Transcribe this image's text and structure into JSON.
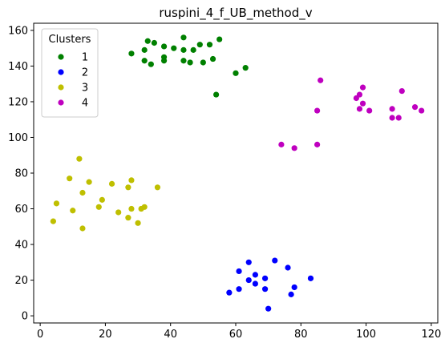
{
  "chart_data": {
    "type": "scatter",
    "title": "ruspini_4_f_UB_method_v",
    "xlabel": "",
    "ylabel": "",
    "xlim": [
      -2,
      122
    ],
    "ylim": [
      -4,
      164
    ],
    "xticks": [
      0,
      20,
      40,
      60,
      80,
      100,
      120
    ],
    "yticks": [
      0,
      20,
      40,
      60,
      80,
      100,
      120,
      140,
      160
    ],
    "grid": false,
    "legend": {
      "title": "Clusters",
      "position": "top-left"
    },
    "series": [
      {
        "name": "1",
        "color": "#008000",
        "points": [
          [
            28,
            147
          ],
          [
            32,
            149
          ],
          [
            32,
            143
          ],
          [
            33,
            154
          ],
          [
            34,
            141
          ],
          [
            35,
            153
          ],
          [
            38,
            151
          ],
          [
            38,
            145
          ],
          [
            38,
            143
          ],
          [
            41,
            150
          ],
          [
            44,
            156
          ],
          [
            44,
            143
          ],
          [
            44,
            149
          ],
          [
            46,
            142
          ],
          [
            47,
            149
          ],
          [
            49,
            152
          ],
          [
            50,
            142
          ],
          [
            52,
            152
          ],
          [
            53,
            144
          ],
          [
            55,
            155
          ],
          [
            54,
            124
          ],
          [
            60,
            136
          ],
          [
            63,
            139
          ]
        ]
      },
      {
        "name": "2",
        "color": "#0000ff",
        "points": [
          [
            58,
            13
          ],
          [
            61,
            25
          ],
          [
            61,
            15
          ],
          [
            64,
            30
          ],
          [
            64,
            20
          ],
          [
            66,
            23
          ],
          [
            66,
            18
          ],
          [
            69,
            21
          ],
          [
            69,
            15
          ],
          [
            70,
            4
          ],
          [
            72,
            31
          ],
          [
            76,
            27
          ],
          [
            77,
            12
          ],
          [
            78,
            16
          ],
          [
            83,
            21
          ]
        ]
      },
      {
        "name": "3",
        "color": "#bfbf00",
        "points": [
          [
            4,
            53
          ],
          [
            5,
            63
          ],
          [
            9,
            77
          ],
          [
            10,
            59
          ],
          [
            12,
            88
          ],
          [
            13,
            69
          ],
          [
            13,
            49
          ],
          [
            15,
            75
          ],
          [
            18,
            61
          ],
          [
            19,
            65
          ],
          [
            22,
            74
          ],
          [
            24,
            58
          ],
          [
            27,
            55
          ],
          [
            27,
            72
          ],
          [
            28,
            60
          ],
          [
            28,
            76
          ],
          [
            30,
            52
          ],
          [
            31,
            60
          ],
          [
            32,
            61
          ],
          [
            36,
            72
          ]
        ]
      },
      {
        "name": "4",
        "color": "#bf00bf",
        "points": [
          [
            74,
            96
          ],
          [
            78,
            94
          ],
          [
            85,
            96
          ],
          [
            85,
            115
          ],
          [
            86,
            132
          ],
          [
            97,
            122
          ],
          [
            98,
            116
          ],
          [
            98,
            124
          ],
          [
            99,
            119
          ],
          [
            99,
            128
          ],
          [
            101,
            115
          ],
          [
            108,
            111
          ],
          [
            108,
            116
          ],
          [
            110,
            111
          ],
          [
            111,
            126
          ],
          [
            115,
            117
          ],
          [
            117,
            115
          ]
        ]
      }
    ]
  }
}
